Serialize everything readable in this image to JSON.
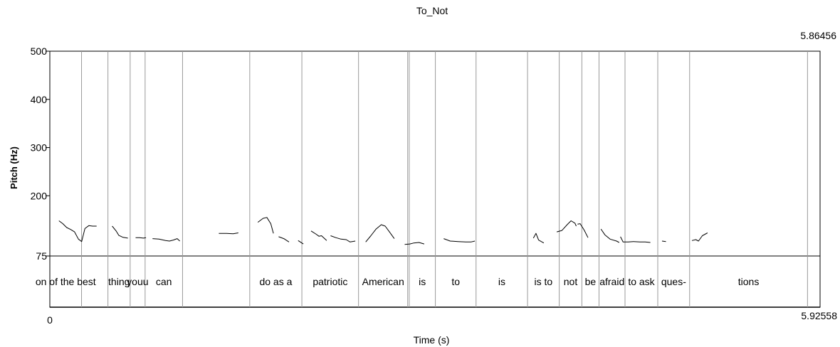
{
  "chart_data": {
    "type": "line",
    "title": "To_Not",
    "xlabel": "Time (s)",
    "ylabel": "Pitch (Hz)",
    "x_start_label": "0",
    "x_end_label": "5.92558",
    "top_right_label": "5.86456",
    "xlim": [
      0,
      5.92558
    ],
    "ylim": [
      75,
      500
    ],
    "yticks": [
      {
        "value": 500,
        "label": "500"
      },
      {
        "value": 400,
        "label": "400"
      },
      {
        "value": 300,
        "label": "300"
      },
      {
        "value": 200,
        "label": "200"
      },
      {
        "value": 75,
        "label": "75"
      }
    ],
    "boundaries": [
      0.244,
      0.447,
      0.618,
      0.733,
      1.021,
      1.538,
      1.939,
      2.375,
      2.753,
      2.765,
      2.966,
      3.279,
      3.675,
      3.919,
      4.093,
      4.225,
      4.425,
      4.677,
      4.922,
      5.829
    ],
    "intervals": [
      {
        "label": "on of the best",
        "start": 0,
        "end": 0.244
      },
      {
        "label": "",
        "start": 0.244,
        "end": 0.447
      },
      {
        "label": "thing",
        "start": 0.447,
        "end": 0.618
      },
      {
        "label": "youu",
        "start": 0.618,
        "end": 0.733
      },
      {
        "label": "can",
        "start": 0.733,
        "end": 1.021
      },
      {
        "label": "",
        "start": 1.021,
        "end": 1.538
      },
      {
        "label": "do as a",
        "start": 1.538,
        "end": 1.939
      },
      {
        "label": "patriotic",
        "start": 1.939,
        "end": 2.375
      },
      {
        "label": "American",
        "start": 2.375,
        "end": 2.753
      },
      {
        "label": "is",
        "start": 2.765,
        "end": 2.966
      },
      {
        "label": "to",
        "start": 2.966,
        "end": 3.279
      },
      {
        "label": "is",
        "start": 3.279,
        "end": 3.675
      },
      {
        "label": "is to",
        "start": 3.675,
        "end": 3.919
      },
      {
        "label": "not",
        "start": 3.919,
        "end": 4.093
      },
      {
        "label": "be",
        "start": 4.093,
        "end": 4.225
      },
      {
        "label": "afraid",
        "start": 4.225,
        "end": 4.425
      },
      {
        "label": "to ask",
        "start": 4.425,
        "end": 4.677
      },
      {
        "label": "ques-",
        "start": 4.677,
        "end": 4.922
      },
      {
        "label": "tions",
        "start": 4.922,
        "end": 5.829
      }
    ],
    "pitch_segments": [
      [
        [
          0.07,
          148
        ],
        [
          0.1,
          142
        ],
        [
          0.13,
          134
        ],
        [
          0.16,
          130
        ],
        [
          0.19,
          125
        ],
        [
          0.22,
          110
        ],
        [
          0.245,
          105
        ],
        [
          0.27,
          132
        ],
        [
          0.3,
          138
        ],
        [
          0.33,
          137
        ],
        [
          0.36,
          137
        ]
      ],
      [
        [
          0.48,
          137
        ],
        [
          0.51,
          127
        ],
        [
          0.53,
          118
        ],
        [
          0.56,
          114
        ],
        [
          0.6,
          112
        ]
      ],
      [
        [
          0.66,
          113
        ],
        [
          0.69,
          113
        ],
        [
          0.72,
          112
        ],
        [
          0.74,
          113
        ]
      ],
      [
        [
          0.79,
          111
        ],
        [
          0.84,
          110
        ],
        [
          0.89,
          107
        ],
        [
          0.92,
          106
        ],
        [
          0.95,
          108
        ],
        [
          0.98,
          111
        ],
        [
          1.0,
          106
        ]
      ],
      [
        [
          1.3,
          122
        ],
        [
          1.36,
          122
        ],
        [
          1.41,
          121
        ],
        [
          1.45,
          123
        ]
      ],
      [
        [
          1.6,
          145
        ],
        [
          1.64,
          153
        ],
        [
          1.67,
          155
        ],
        [
          1.7,
          142
        ],
        [
          1.72,
          122
        ]
      ],
      [
        [
          1.76,
          115
        ],
        [
          1.8,
          111
        ],
        [
          1.84,
          104
        ]
      ],
      [
        [
          1.91,
          107
        ],
        [
          1.95,
          100
        ]
      ],
      [
        [
          2.01,
          127
        ],
        [
          2.05,
          120
        ],
        [
          2.07,
          116
        ],
        [
          2.09,
          117
        ],
        [
          2.13,
          107
        ]
      ],
      [
        [
          2.16,
          117
        ],
        [
          2.2,
          113
        ],
        [
          2.24,
          110
        ],
        [
          2.28,
          109
        ],
        [
          2.31,
          104
        ],
        [
          2.35,
          106
        ]
      ],
      [
        [
          2.43,
          104
        ],
        [
          2.47,
          117
        ],
        [
          2.51,
          131
        ],
        [
          2.55,
          140
        ],
        [
          2.58,
          137
        ],
        [
          2.61,
          126
        ],
        [
          2.65,
          111
        ]
      ],
      [
        [
          2.73,
          99
        ],
        [
          2.77,
          100
        ],
        [
          2.8,
          102
        ],
        [
          2.84,
          103
        ],
        [
          2.88,
          100
        ]
      ],
      [
        [
          3.03,
          111
        ],
        [
          3.08,
          106
        ],
        [
          3.14,
          105
        ],
        [
          3.2,
          104
        ],
        [
          3.24,
          104
        ],
        [
          3.27,
          106
        ]
      ],
      [
        [
          3.72,
          112
        ],
        [
          3.74,
          122
        ],
        [
          3.76,
          108
        ],
        [
          3.8,
          102
        ]
      ],
      [
        [
          3.9,
          125
        ],
        [
          3.94,
          128
        ],
        [
          3.98,
          140
        ],
        [
          4.01,
          148
        ],
        [
          4.04,
          143
        ],
        [
          4.05,
          137
        ]
      ],
      [
        [
          4.06,
          141
        ],
        [
          4.08,
          142
        ],
        [
          4.11,
          129
        ],
        [
          4.14,
          113
        ]
      ],
      [
        [
          4.24,
          131
        ],
        [
          4.27,
          119
        ],
        [
          4.31,
          110
        ],
        [
          4.36,
          106
        ],
        [
          4.38,
          103
        ]
      ],
      [
        [
          4.39,
          115
        ],
        [
          4.41,
          104
        ],
        [
          4.45,
          104
        ],
        [
          4.49,
          105
        ],
        [
          4.54,
          104
        ],
        [
          4.58,
          104
        ],
        [
          4.62,
          103
        ]
      ],
      [
        [
          4.71,
          106
        ],
        [
          4.74,
          105
        ]
      ],
      [
        [
          4.94,
          107
        ],
        [
          4.97,
          109
        ],
        [
          4.99,
          106
        ],
        [
          5.02,
          117
        ],
        [
          5.06,
          123
        ]
      ]
    ]
  }
}
